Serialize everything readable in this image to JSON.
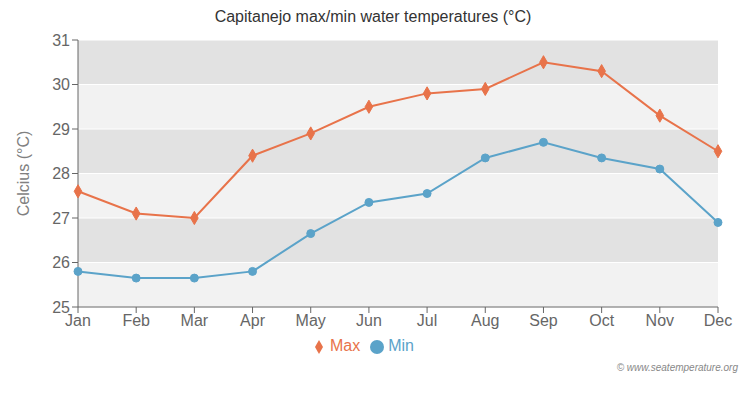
{
  "chart_data": {
    "type": "line",
    "title": "Capitanejo max/min water temperatures (°C)",
    "ylabel": "Celcius (°C)",
    "categories": [
      "Jan",
      "Feb",
      "Mar",
      "Apr",
      "May",
      "Jun",
      "Jul",
      "Aug",
      "Sep",
      "Oct",
      "Nov",
      "Dec"
    ],
    "series": [
      {
        "name": "Max",
        "color": "#e8734a",
        "marker": "diamond",
        "values": [
          27.6,
          27.1,
          27.0,
          28.4,
          28.9,
          29.5,
          29.8,
          29.9,
          30.5,
          30.3,
          29.3,
          28.5
        ]
      },
      {
        "name": "Min",
        "color": "#5ba3c9",
        "marker": "circle",
        "values": [
          25.8,
          25.65,
          25.65,
          25.8,
          26.65,
          27.35,
          27.55,
          28.35,
          28.7,
          28.35,
          28.1,
          26.9
        ]
      }
    ],
    "ylim": [
      25,
      31
    ],
    "yticks": [
      25,
      26,
      27,
      28,
      29,
      30,
      31
    ],
    "grid": true,
    "legend": "bottom",
    "annotations": [
      "© www.seatemperature.org"
    ]
  }
}
